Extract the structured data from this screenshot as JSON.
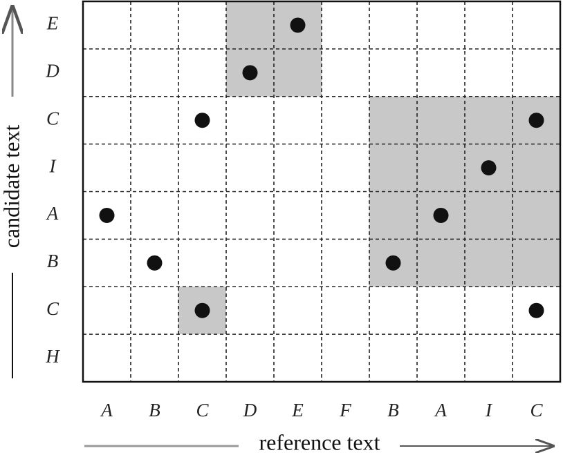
{
  "reference_axis": {
    "label": "reference text",
    "tokens": [
      "A",
      "B",
      "C",
      "D",
      "E",
      "F",
      "B",
      "A",
      "I",
      "C"
    ]
  },
  "candidate_axis": {
    "label": "candidate text",
    "tokens": [
      "E",
      "D",
      "C",
      "I",
      "A",
      "B",
      "C",
      "H"
    ]
  }
}
